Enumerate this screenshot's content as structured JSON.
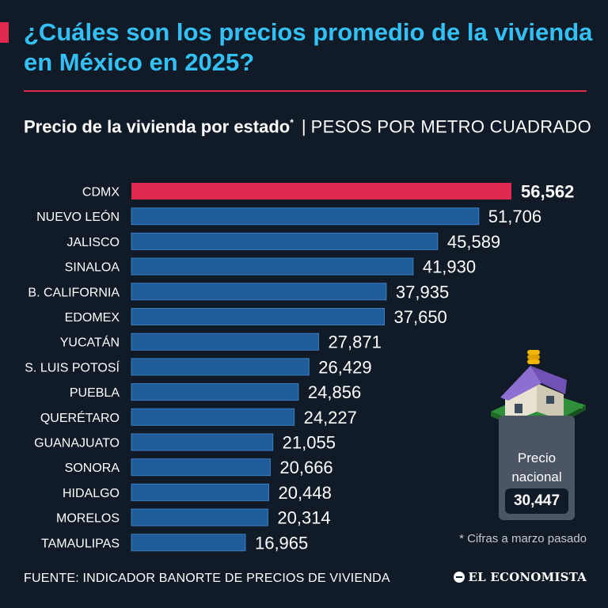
{
  "title": "¿Cuáles son los precios promedio de la vivienda en México en 2025?",
  "subtitle": {
    "bold": "Precio de la vivienda por estado",
    "asterisk": "*",
    "separator": "|",
    "unit": "PESOS POR METRO CUADRADO"
  },
  "chart_data": {
    "type": "bar",
    "orientation": "horizontal",
    "categories": [
      "CDMX",
      "NUEVO LEÓN",
      "JALISCO",
      "SINALOA",
      "B. CALIFORNIA",
      "EDOMEX",
      "YUCATÁN",
      "S. LUIS POTOSÍ",
      "PUEBLA",
      "QUERÉTARO",
      "GUANAJUATO",
      "SONORA",
      "HIDALGO",
      "MORELOS",
      "TAMAULIPAS"
    ],
    "values": [
      56562,
      51706,
      45589,
      41930,
      37935,
      37650,
      27871,
      26429,
      24856,
      24227,
      21055,
      20666,
      20448,
      20314,
      16965
    ],
    "value_labels": [
      "56,562",
      "51,706",
      "45,589",
      "41,930",
      "37,935",
      "37,650",
      "27,871",
      "26,429",
      "24,856",
      "24,227",
      "21,055",
      "20,666",
      "20,448",
      "20,314",
      "16,965"
    ],
    "highlight_index": 0,
    "xlim": [
      0,
      56562
    ],
    "grid": false,
    "colors": {
      "highlight": "#e0294f",
      "bar": "#1f5c99",
      "bar_edge": "#3b7fc4"
    }
  },
  "national": {
    "label": "Precio nacional",
    "value": "30,447"
  },
  "footnote": "* Cifras a marzo pasado",
  "source": "FUENTE: INDICADOR BANORTE DE PRECIOS DE VIVIENDA",
  "logo": "EL ECONOMISTA"
}
